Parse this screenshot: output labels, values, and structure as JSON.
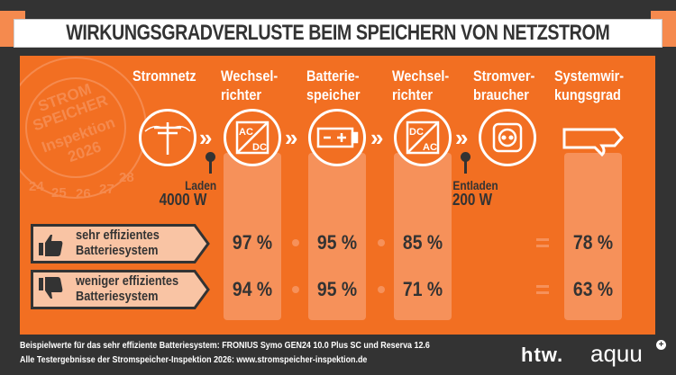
{
  "title": "WIRKUNGSGRADVERLUSTE BEIM SPEICHERN VON NETZSTROM",
  "stamp": {
    "line1": "STROM",
    "line2": "SPEICHER",
    "line3": "Inspektion",
    "line4": "2026",
    "numbers": [
      "24",
      "25",
      "26",
      "27",
      "28"
    ]
  },
  "columns": [
    {
      "line1": "Stromnetz",
      "line2": "",
      "icon": "power-pole-icon"
    },
    {
      "line1": "Wechsel-",
      "line2": "richter",
      "icon": "inverter-ac-dc-icon",
      "icon_top": "AC",
      "icon_bottom": "DC"
    },
    {
      "line1": "Batterie-",
      "line2": "speicher",
      "icon": "battery-icon"
    },
    {
      "line1": "Wechsel-",
      "line2": "richter",
      "icon": "inverter-dc-ac-icon",
      "icon_top": "DC",
      "icon_bottom": "AC"
    },
    {
      "line1": "Stromver-",
      "line2": "braucher",
      "icon": "power-socket-icon"
    },
    {
      "line1": "Systemwir-",
      "line2": "kungsgrad",
      "icon": "arrow-sign-icon"
    }
  ],
  "charge": {
    "label": "Laden",
    "value": "4000 W"
  },
  "discharge": {
    "label": "Entladen",
    "value": "200 W"
  },
  "rows": [
    {
      "line1": "sehr effizientes",
      "line2": "Batteriesystem",
      "icon": "thumbs-up-icon",
      "values": [
        "97 %",
        "95 %",
        "85 %"
      ],
      "result": "78 %"
    },
    {
      "line1": "weniger effizientes",
      "line2": "Batteriesystem",
      "icon": "thumbs-down-icon",
      "values": [
        "94 %",
        "95 %",
        "71 %"
      ],
      "result": "63 %"
    }
  ],
  "footer": {
    "line1": "Beispielwerte für das sehr effiziente Batteriesystem: FRONIUS Symo GEN24 10.0 Plus SC und Reserva 12.6",
    "line2": "Alle Testergebnisse der Stromspeicher-Inspektion 2026: www.stromspeicher-inspektion.de"
  },
  "logos": {
    "htw": "htw.",
    "aquu": "aquu"
  },
  "colors": {
    "background": "#333333",
    "orange": "#f26f22",
    "light_orange": "#f6915a",
    "label_bg": "#f9c4a4"
  }
}
